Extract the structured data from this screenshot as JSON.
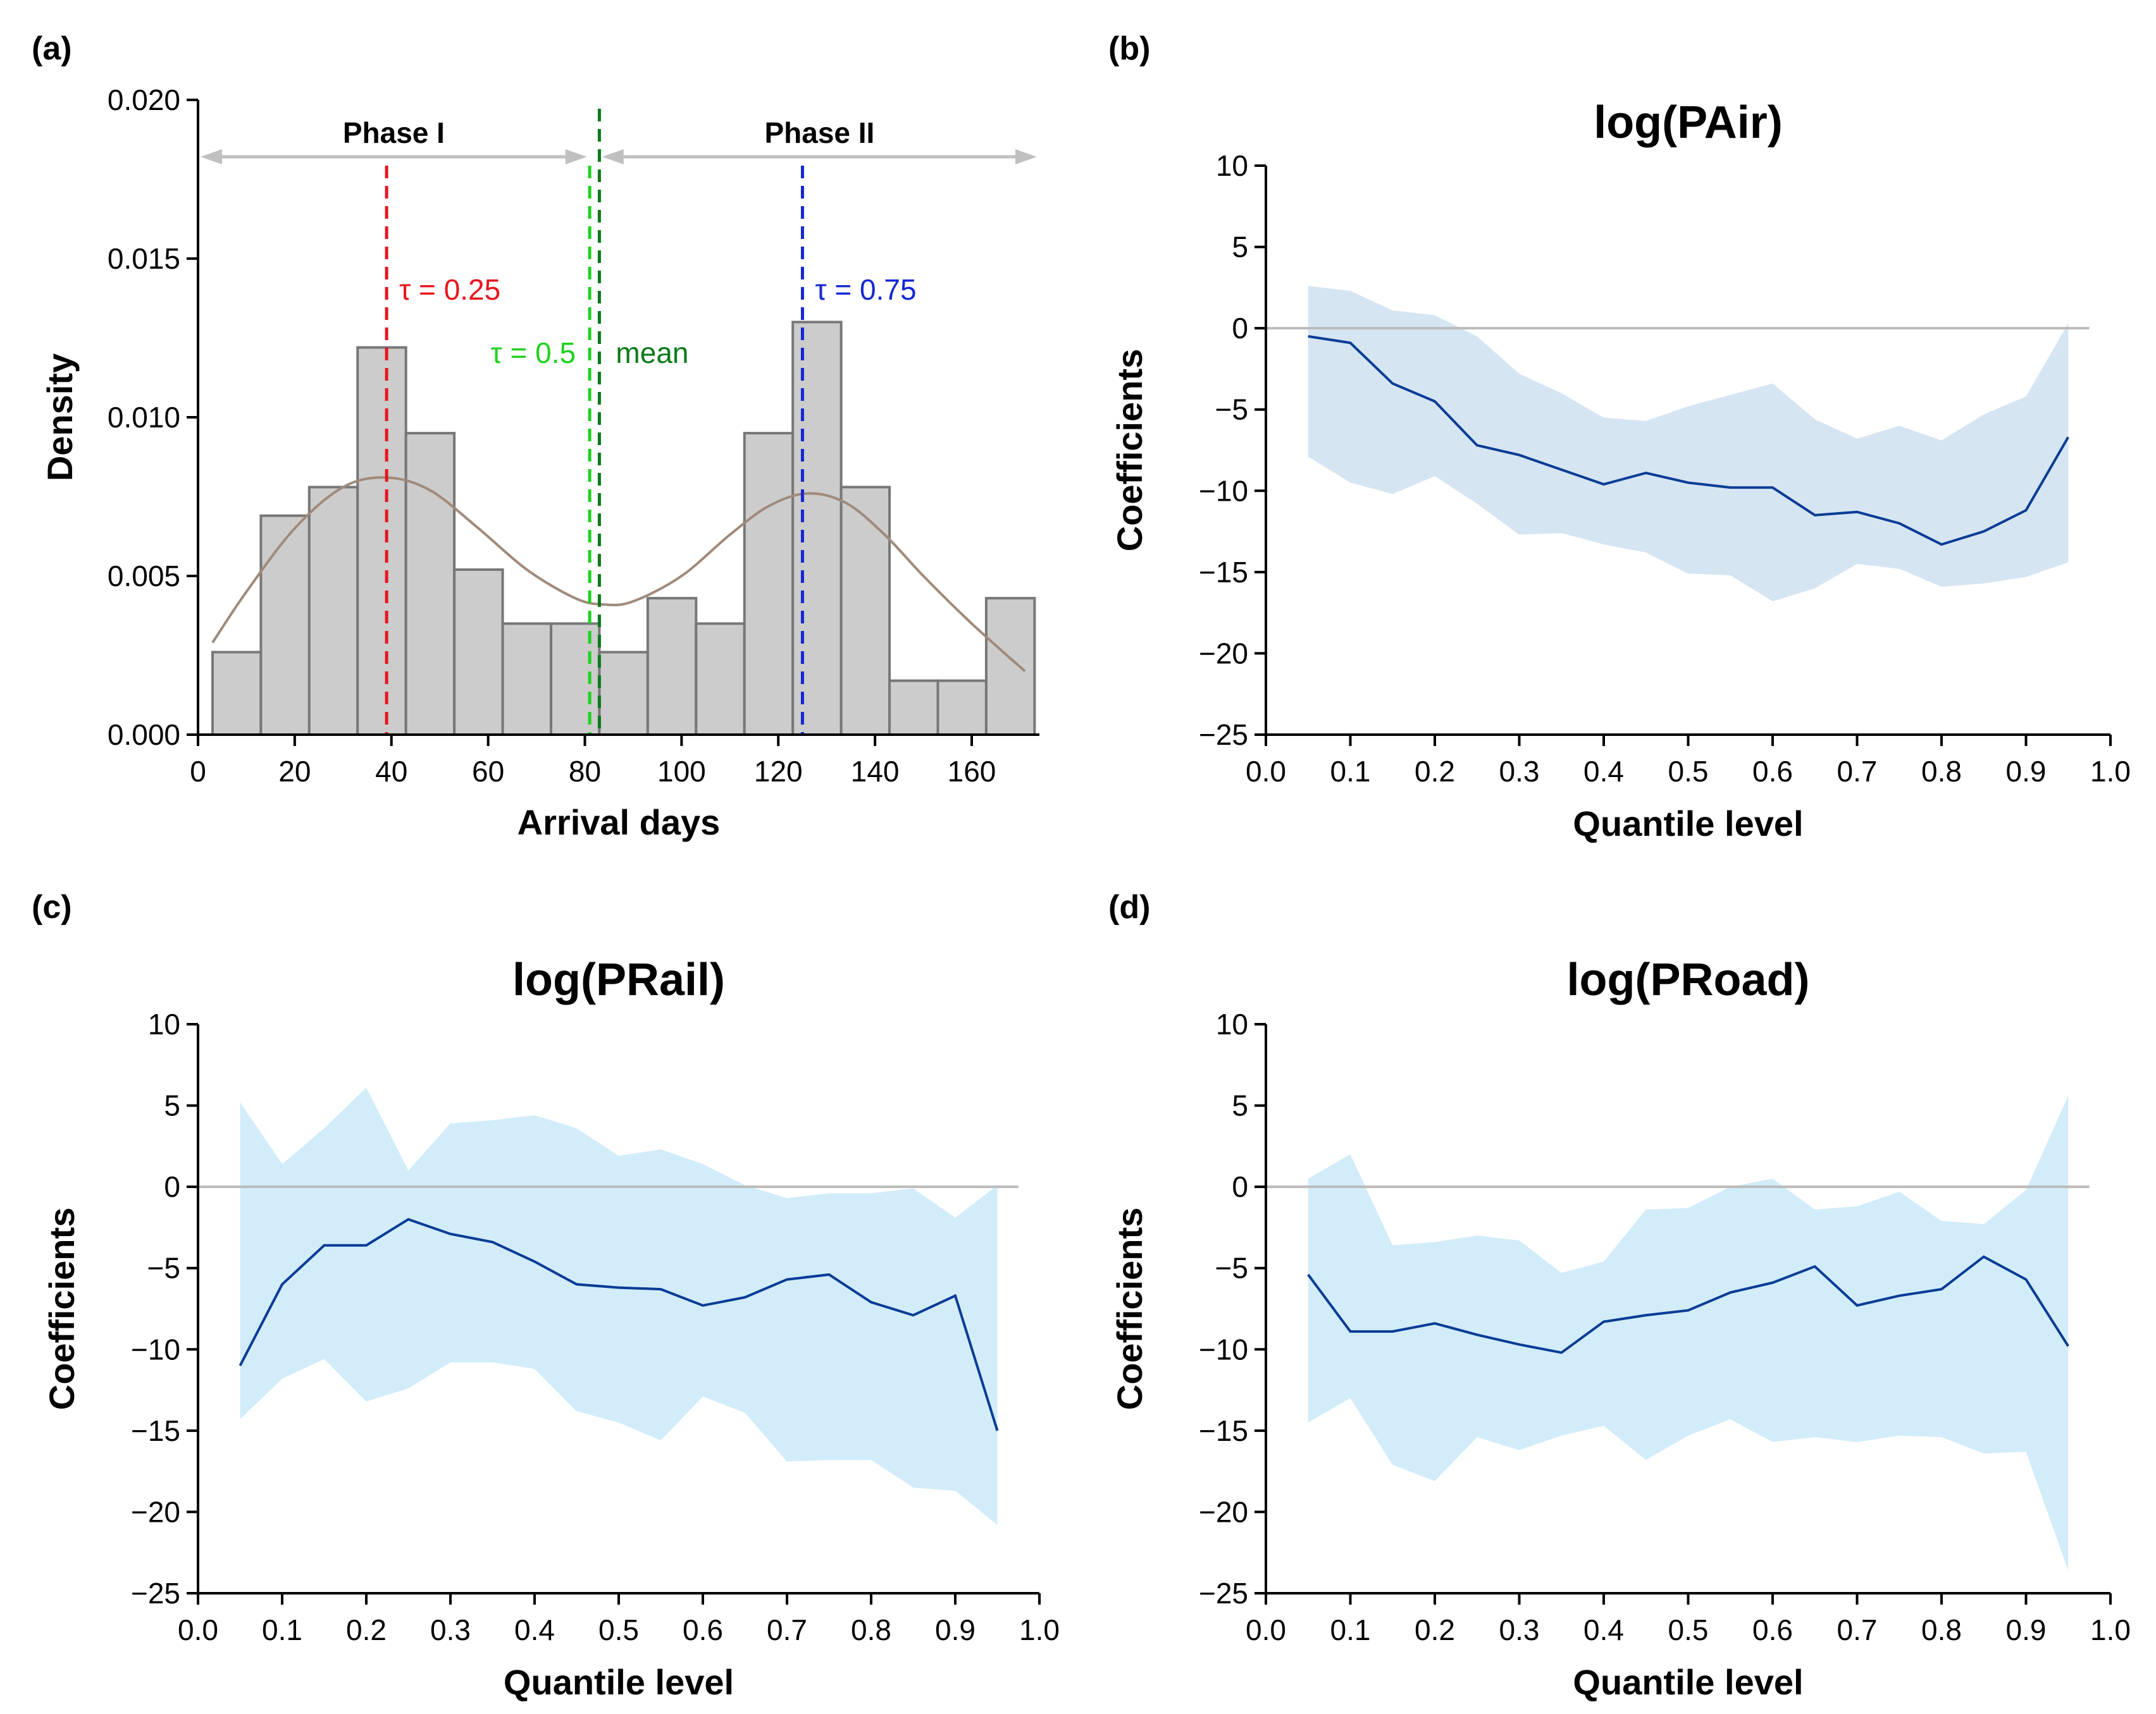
{
  "colors": {
    "bar_fill": "#cccccc",
    "bar_stroke": "#777777",
    "density_curve": "#a08a7a",
    "phase_arrow": "#c0c0c0",
    "tau_025": "#e8141e",
    "tau_050": "#1ed21e",
    "mean": "#0a7a1a",
    "tau_075": "#1428d2",
    "coef_line": "#0a3c96",
    "band_air": "#d6e5f2",
    "band_rail": "#d2ecfa",
    "band_road": "#d2ecfa",
    "zero_line": "#bbbbbb",
    "axis": "#000000"
  },
  "chart_data": [
    {
      "panel": "(a)",
      "type": "bar",
      "title": "",
      "xlabel": "Arrival days",
      "ylabel": "Density",
      "xlim": [
        0,
        174
      ],
      "ylim": [
        0,
        0.02
      ],
      "xticks": [
        0,
        20,
        40,
        60,
        80,
        100,
        120,
        140,
        160
      ],
      "yticks": [
        "0.000",
        "0.005",
        "0.010",
        "0.015",
        "0.020"
      ],
      "bin_edges": [
        3,
        13,
        23,
        33,
        43,
        53,
        63,
        73,
        83,
        93,
        103,
        113,
        123,
        133,
        143,
        153,
        163,
        173
      ],
      "values": [
        0.0026,
        0.0069,
        0.0078,
        0.0122,
        0.0095,
        0.0052,
        0.0035,
        0.0035,
        0.0026,
        0.0043,
        0.0035,
        0.0095,
        0.013,
        0.0078,
        0.0017,
        0.0017,
        0.0043
      ],
      "density_curve": {
        "x": [
          3,
          10,
          20,
          30,
          39,
          48,
          58,
          68,
          78,
          84,
          90,
          100,
          110,
          118,
          126,
          134,
          142,
          150,
          160,
          171
        ],
        "y": [
          0.0029,
          0.0045,
          0.0065,
          0.0078,
          0.0081,
          0.0077,
          0.0065,
          0.0052,
          0.0043,
          0.0041,
          0.0042,
          0.005,
          0.0063,
          0.0072,
          0.0076,
          0.0073,
          0.0063,
          0.005,
          0.0035,
          0.002
        ]
      },
      "vlines": [
        {
          "x": 39,
          "label": "τ = 0.25",
          "key": "tau_025"
        },
        {
          "x": 81,
          "label": "τ = 0.5",
          "key": "tau_050"
        },
        {
          "x": 83,
          "label": "mean",
          "key": "mean"
        },
        {
          "x": 125,
          "label": "τ = 0.75",
          "key": "tau_075"
        }
      ],
      "phases": [
        {
          "label": "Phase I",
          "from": 0,
          "to": 82
        },
        {
          "label": "Phase II",
          "from": 82,
          "to": 174
        }
      ]
    },
    {
      "panel": "(b)",
      "type": "line",
      "title": "log(PAir)",
      "xlabel": "Quantile level",
      "ylabel": "Coefficients",
      "xlim": [
        0,
        1
      ],
      "ylim": [
        -25,
        10
      ],
      "xticks": [
        "0.0",
        "0.1",
        "0.2",
        "0.3",
        "0.4",
        "0.5",
        "0.6",
        "0.7",
        "0.8",
        "0.9",
        "1.0"
      ],
      "yticks": [
        "10",
        "5",
        "0",
        "−5",
        "−10",
        "−15",
        "−20",
        "−25"
      ],
      "x": [
        0.05,
        0.1,
        0.15,
        0.2,
        0.25,
        0.3,
        0.35,
        0.4,
        0.45,
        0.5,
        0.55,
        0.6,
        0.65,
        0.7,
        0.75,
        0.8,
        0.85,
        0.9,
        0.95
      ],
      "estimate": [
        -0.5,
        -0.9,
        -3.4,
        -4.5,
        -7.2,
        -7.8,
        -8.7,
        -9.6,
        -8.9,
        -9.5,
        -9.8,
        -9.8,
        -11.5,
        -11.3,
        -12.0,
        -13.3,
        -12.5,
        -11.2,
        -6.7
      ],
      "upper": [
        2.6,
        2.3,
        1.1,
        0.8,
        -0.5,
        -2.8,
        -4.0,
        -5.5,
        -5.7,
        -4.8,
        -4.1,
        -3.4,
        -5.6,
        -6.8,
        -6.0,
        -6.9,
        -5.3,
        -4.2,
        0.3
      ],
      "lower": [
        -7.9,
        -9.5,
        -10.2,
        -9.1,
        -10.8,
        -12.7,
        -12.6,
        -13.3,
        -13.8,
        -15.1,
        -15.2,
        -16.8,
        -16.0,
        -14.5,
        -14.8,
        -15.9,
        -15.7,
        -15.3,
        -14.4
      ],
      "band_key": "band_air"
    },
    {
      "panel": "(c)",
      "type": "line",
      "title": "log(PRail)",
      "xlabel": "Quantile level",
      "ylabel": "Coefficients",
      "xlim": [
        0,
        1
      ],
      "ylim": [
        -25,
        10
      ],
      "xticks": [
        "0.0",
        "0.1",
        "0.2",
        "0.3",
        "0.4",
        "0.5",
        "0.6",
        "0.7",
        "0.8",
        "0.9",
        "1.0"
      ],
      "yticks": [
        "10",
        "5",
        "0",
        "−5",
        "−10",
        "−15",
        "−20",
        "−25"
      ],
      "x": [
        0.05,
        0.1,
        0.15,
        0.2,
        0.25,
        0.3,
        0.35,
        0.4,
        0.45,
        0.5,
        0.55,
        0.6,
        0.65,
        0.7,
        0.75,
        0.8,
        0.85,
        0.9,
        0.95
      ],
      "estimate": [
        -11.0,
        -6.0,
        -3.6,
        -3.6,
        -2.0,
        -2.9,
        -3.4,
        -4.6,
        -6.0,
        -6.2,
        -6.3,
        -7.3,
        -6.8,
        -5.7,
        -5.4,
        -7.1,
        -7.9,
        -6.7,
        -15.0
      ],
      "upper": [
        5.2,
        1.4,
        3.6,
        6.1,
        1.0,
        3.9,
        4.1,
        4.4,
        3.6,
        1.9,
        2.3,
        1.4,
        0.1,
        -0.7,
        -0.4,
        -0.4,
        -0.1,
        -1.9,
        0.1
      ],
      "lower": [
        -14.3,
        -11.8,
        -10.6,
        -13.2,
        -12.4,
        -10.8,
        -10.8,
        -11.2,
        -13.8,
        -14.5,
        -15.6,
        -12.9,
        -13.9,
        -16.9,
        -16.8,
        -16.8,
        -18.5,
        -18.7,
        -20.8
      ],
      "band_key": "band_rail"
    },
    {
      "panel": "(d)",
      "type": "line",
      "title": "log(PRoad)",
      "xlabel": "Quantile level",
      "ylabel": "Coefficients",
      "xlim": [
        0,
        1
      ],
      "ylim": [
        -25,
        10
      ],
      "xticks": [
        "0.0",
        "0.1",
        "0.2",
        "0.3",
        "0.4",
        "0.5",
        "0.6",
        "0.7",
        "0.8",
        "0.9",
        "1.0"
      ],
      "yticks": [
        "10",
        "5",
        "0",
        "−5",
        "−10",
        "−15",
        "−20",
        "−25"
      ],
      "x": [
        0.05,
        0.1,
        0.15,
        0.2,
        0.25,
        0.3,
        0.35,
        0.4,
        0.45,
        0.5,
        0.55,
        0.6,
        0.65,
        0.7,
        0.75,
        0.8,
        0.85,
        0.9,
        0.95
      ],
      "estimate": [
        -5.4,
        -8.9,
        -8.9,
        -8.4,
        -9.1,
        -9.7,
        -10.2,
        -8.3,
        -7.9,
        -7.6,
        -6.5,
        -5.9,
        -4.9,
        -7.3,
        -6.7,
        -6.3,
        -4.3,
        -5.7,
        -9.8
      ],
      "upper": [
        0.5,
        2.0,
        -3.6,
        -3.4,
        -3.0,
        -3.3,
        -5.3,
        -4.6,
        -1.4,
        -1.3,
        0.0,
        0.5,
        -1.4,
        -1.2,
        -0.3,
        -2.1,
        -2.3,
        -0.2,
        5.6
      ],
      "lower": [
        -14.5,
        -13.0,
        -17.1,
        -18.1,
        -15.4,
        -16.2,
        -15.3,
        -14.7,
        -16.8,
        -15.3,
        -14.3,
        -15.7,
        -15.4,
        -15.7,
        -15.3,
        -15.4,
        -16.4,
        -16.3,
        -23.6
      ],
      "band_key": "band_road"
    }
  ]
}
